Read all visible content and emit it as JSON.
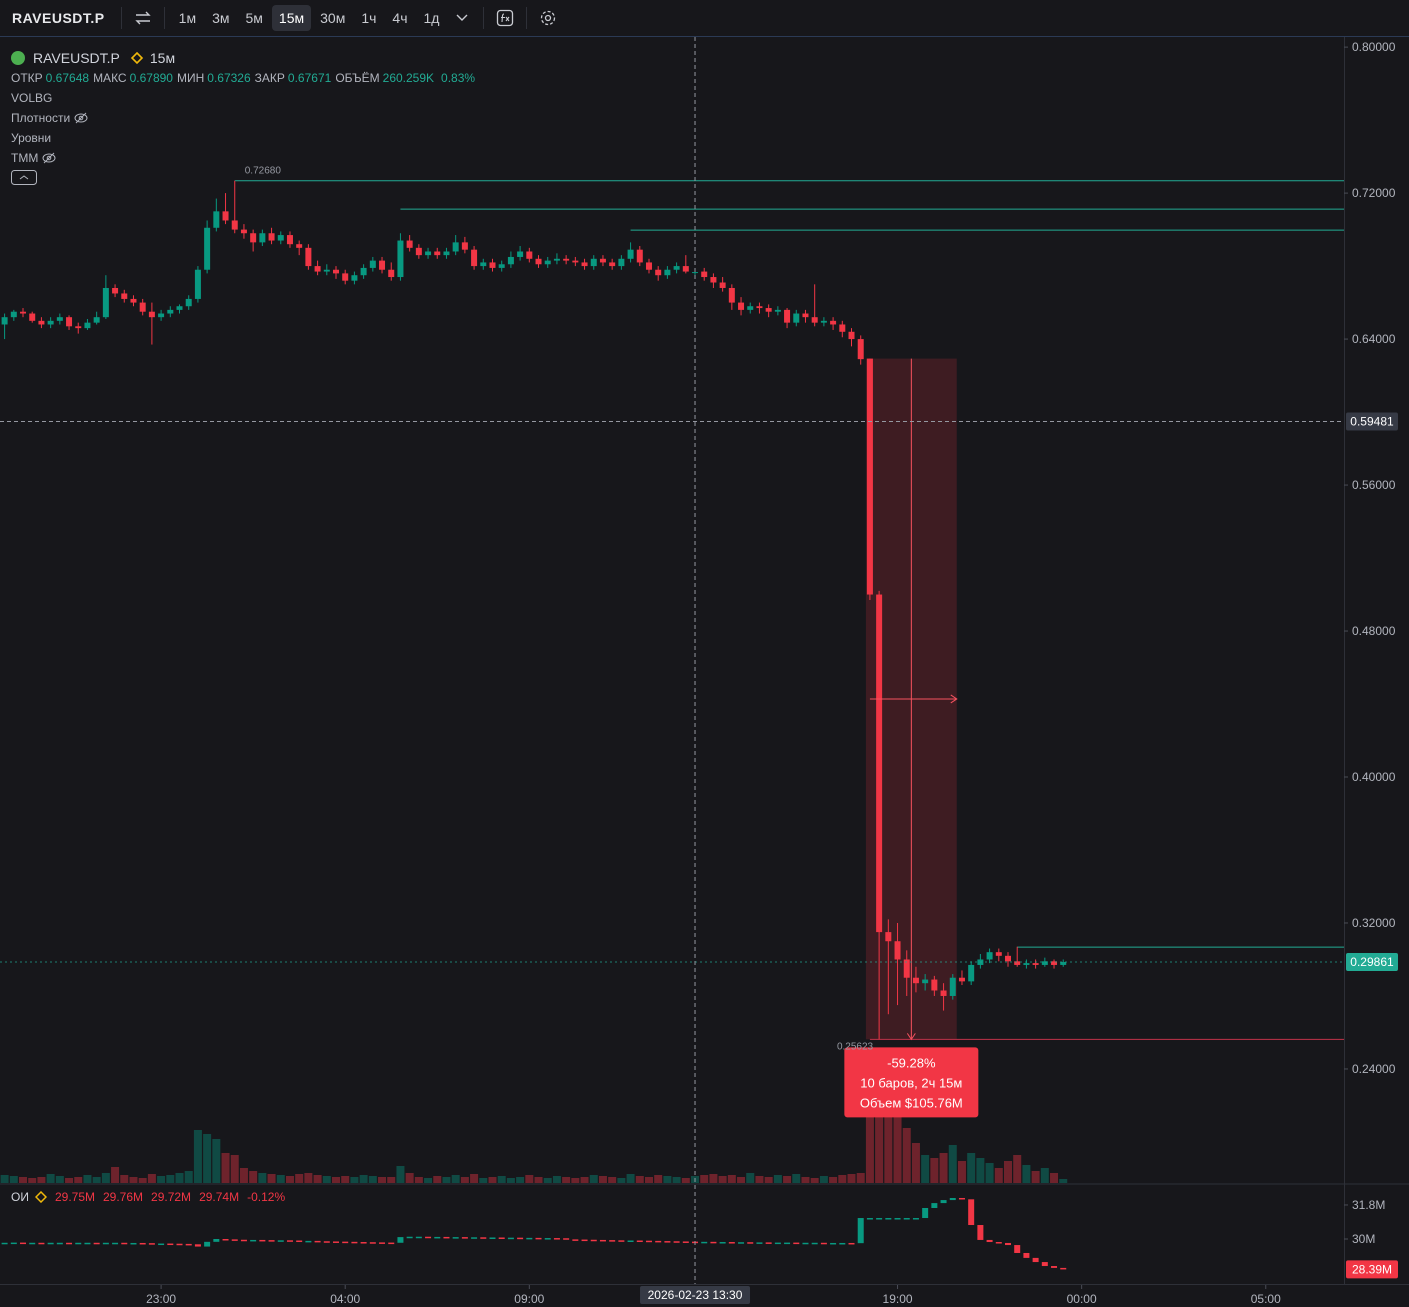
{
  "toolbar": {
    "symbol": "RAVEUSDT.P",
    "intervals": [
      "1м",
      "3м",
      "5м",
      "15м",
      "30м",
      "1ч",
      "4ч",
      "1д"
    ],
    "active_interval": 3
  },
  "legend": {
    "symbol": "RAVEUSDT.P",
    "interval": "15м",
    "fields": [
      {
        "label": "ОТКР",
        "value": "0.67648"
      },
      {
        "label": "МАКС",
        "value": "0.67890"
      },
      {
        "label": "МИН",
        "value": "0.67326"
      },
      {
        "label": "ЗАКР",
        "value": "0.67671"
      },
      {
        "label": "ОБЪЁМ",
        "value": "260.259K"
      }
    ],
    "change": "0.83%",
    "indicators": [
      "VOLBG",
      "Плотности",
      "Уровни",
      "ТММ"
    ]
  },
  "chart_data": {
    "type": "candlestick",
    "candles": [
      [
        0.648,
        0.654,
        0.64,
        0.652
      ],
      [
        0.652,
        0.656,
        0.65,
        0.655
      ],
      [
        0.655,
        0.657,
        0.652,
        0.654
      ],
      [
        0.654,
        0.655,
        0.649,
        0.65
      ],
      [
        0.65,
        0.652,
        0.646,
        0.648
      ],
      [
        0.648,
        0.652,
        0.646,
        0.65
      ],
      [
        0.65,
        0.654,
        0.648,
        0.652
      ],
      [
        0.652,
        0.653,
        0.645,
        0.647
      ],
      [
        0.647,
        0.649,
        0.643,
        0.646
      ],
      [
        0.646,
        0.651,
        0.645,
        0.649
      ],
      [
        0.649,
        0.655,
        0.648,
        0.652
      ],
      [
        0.652,
        0.675,
        0.651,
        0.668
      ],
      [
        0.668,
        0.67,
        0.663,
        0.665
      ],
      [
        0.665,
        0.667,
        0.66,
        0.662
      ],
      [
        0.662,
        0.664,
        0.658,
        0.66
      ],
      [
        0.66,
        0.662,
        0.653,
        0.655
      ],
      [
        0.655,
        0.66,
        0.637,
        0.652
      ],
      [
        0.652,
        0.656,
        0.65,
        0.654
      ],
      [
        0.654,
        0.658,
        0.652,
        0.656
      ],
      [
        0.656,
        0.659,
        0.654,
        0.658
      ],
      [
        0.658,
        0.664,
        0.656,
        0.662
      ],
      [
        0.662,
        0.68,
        0.66,
        0.678
      ],
      [
        0.678,
        0.705,
        0.676,
        0.701
      ],
      [
        0.701,
        0.717,
        0.699,
        0.71
      ],
      [
        0.71,
        0.72,
        0.703,
        0.705
      ],
      [
        0.705,
        0.7268,
        0.698,
        0.7
      ],
      [
        0.7,
        0.703,
        0.695,
        0.698
      ],
      [
        0.698,
        0.7,
        0.688,
        0.693
      ],
      [
        0.693,
        0.7,
        0.691,
        0.698
      ],
      [
        0.698,
        0.701,
        0.692,
        0.694
      ],
      [
        0.694,
        0.699,
        0.692,
        0.697
      ],
      [
        0.697,
        0.699,
        0.69,
        0.692
      ],
      [
        0.692,
        0.694,
        0.686,
        0.69
      ],
      [
        0.69,
        0.692,
        0.678,
        0.68
      ],
      [
        0.68,
        0.683,
        0.675,
        0.677
      ],
      [
        0.677,
        0.681,
        0.675,
        0.678
      ],
      [
        0.678,
        0.68,
        0.673,
        0.676
      ],
      [
        0.676,
        0.678,
        0.67,
        0.672
      ],
      [
        0.672,
        0.677,
        0.67,
        0.675
      ],
      [
        0.675,
        0.681,
        0.673,
        0.679
      ],
      [
        0.679,
        0.685,
        0.677,
        0.683
      ],
      [
        0.683,
        0.685,
        0.676,
        0.678
      ],
      [
        0.678,
        0.682,
        0.672,
        0.674
      ],
      [
        0.674,
        0.698,
        0.672,
        0.694
      ],
      [
        0.694,
        0.697,
        0.688,
        0.69
      ],
      [
        0.69,
        0.692,
        0.684,
        0.686
      ],
      [
        0.686,
        0.69,
        0.684,
        0.688
      ],
      [
        0.688,
        0.69,
        0.684,
        0.686
      ],
      [
        0.686,
        0.69,
        0.684,
        0.688
      ],
      [
        0.688,
        0.697,
        0.686,
        0.693
      ],
      [
        0.693,
        0.696,
        0.687,
        0.689
      ],
      [
        0.689,
        0.691,
        0.678,
        0.68
      ],
      [
        0.68,
        0.684,
        0.678,
        0.682
      ],
      [
        0.682,
        0.684,
        0.677,
        0.679
      ],
      [
        0.679,
        0.683,
        0.677,
        0.681
      ],
      [
        0.681,
        0.688,
        0.679,
        0.685
      ],
      [
        0.685,
        0.691,
        0.683,
        0.688
      ],
      [
        0.688,
        0.69,
        0.682,
        0.684
      ],
      [
        0.684,
        0.686,
        0.679,
        0.681
      ],
      [
        0.681,
        0.685,
        0.679,
        0.683
      ],
      [
        0.683,
        0.687,
        0.681,
        0.684
      ],
      [
        0.684,
        0.686,
        0.681,
        0.683
      ],
      [
        0.683,
        0.685,
        0.68,
        0.682
      ],
      [
        0.682,
        0.684,
        0.678,
        0.68
      ],
      [
        0.68,
        0.686,
        0.678,
        0.684
      ],
      [
        0.684,
        0.686,
        0.68,
        0.682
      ],
      [
        0.682,
        0.684,
        0.678,
        0.68
      ],
      [
        0.68,
        0.686,
        0.678,
        0.684
      ],
      [
        0.684,
        0.693,
        0.682,
        0.689
      ],
      [
        0.689,
        0.691,
        0.68,
        0.682
      ],
      [
        0.682,
        0.684,
        0.676,
        0.678
      ],
      [
        0.678,
        0.68,
        0.672,
        0.675
      ],
      [
        0.675,
        0.68,
        0.673,
        0.678
      ],
      [
        0.678,
        0.682,
        0.676,
        0.68
      ],
      [
        0.68,
        0.686,
        0.676,
        0.677
      ],
      [
        0.67648,
        0.6789,
        0.67326,
        0.67671
      ],
      [
        0.677,
        0.679,
        0.672,
        0.674
      ],
      [
        0.674,
        0.676,
        0.668,
        0.671
      ],
      [
        0.671,
        0.674,
        0.666,
        0.668
      ],
      [
        0.668,
        0.67,
        0.656,
        0.66
      ],
      [
        0.66,
        0.663,
        0.653,
        0.656
      ],
      [
        0.656,
        0.66,
        0.654,
        0.658
      ],
      [
        0.658,
        0.66,
        0.654,
        0.657
      ],
      [
        0.657,
        0.659,
        0.652,
        0.655
      ],
      [
        0.655,
        0.658,
        0.653,
        0.656
      ],
      [
        0.656,
        0.657,
        0.646,
        0.649
      ],
      [
        0.649,
        0.656,
        0.647,
        0.654
      ],
      [
        0.654,
        0.656,
        0.649,
        0.652
      ],
      [
        0.652,
        0.67,
        0.647,
        0.649
      ],
      [
        0.649,
        0.652,
        0.647,
        0.65
      ],
      [
        0.65,
        0.652,
        0.645,
        0.648
      ],
      [
        0.648,
        0.65,
        0.641,
        0.644
      ],
      [
        0.644,
        0.646,
        0.636,
        0.64
      ],
      [
        0.64,
        0.642,
        0.626,
        0.629
      ],
      [
        0.6293,
        0.6293,
        0.497,
        0.5
      ],
      [
        0.5,
        0.502,
        0.25623,
        0.315
      ],
      [
        0.315,
        0.322,
        0.27,
        0.31
      ],
      [
        0.31,
        0.32,
        0.275,
        0.3
      ],
      [
        0.3,
        0.305,
        0.28,
        0.29
      ],
      [
        0.29,
        0.296,
        0.282,
        0.287
      ],
      [
        0.287,
        0.292,
        0.283,
        0.289
      ],
      [
        0.289,
        0.291,
        0.28,
        0.283
      ],
      [
        0.283,
        0.287,
        0.272,
        0.28
      ],
      [
        0.28,
        0.292,
        0.278,
        0.29
      ],
      [
        0.29,
        0.294,
        0.286,
        0.288
      ],
      [
        0.288,
        0.299,
        0.286,
        0.297
      ],
      [
        0.297,
        0.303,
        0.295,
        0.3
      ],
      [
        0.3,
        0.306,
        0.298,
        0.304
      ],
      [
        0.304,
        0.306,
        0.299,
        0.302
      ],
      [
        0.302,
        0.304,
        0.296,
        0.299
      ],
      [
        0.299,
        0.307,
        0.296,
        0.297
      ],
      [
        0.297,
        0.3,
        0.295,
        0.298
      ],
      [
        0.298,
        0.3,
        0.295,
        0.297
      ],
      [
        0.297,
        0.301,
        0.296,
        0.299
      ],
      [
        0.299,
        0.3,
        0.295,
        0.297
      ],
      [
        0.297,
        0.3,
        0.296,
        0.29861
      ]
    ],
    "up_color": "#089981",
    "down_color": "#f23645",
    "volume": [
      8,
      7,
      6,
      5,
      6,
      9,
      7,
      5,
      6,
      8,
      6,
      10,
      16,
      8,
      6,
      5,
      9,
      7,
      8,
      10,
      12,
      53,
      49,
      44,
      30,
      28,
      15,
      12,
      10,
      9,
      8,
      7,
      9,
      10,
      8,
      7,
      6,
      7,
      6,
      8,
      7,
      6,
      6,
      17,
      10,
      6,
      5,
      7,
      6,
      8,
      6,
      9,
      5,
      6,
      7,
      5,
      6,
      8,
      6,
      5,
      7,
      6,
      5,
      6,
      8,
      7,
      6,
      5,
      9,
      7,
      6,
      8,
      7,
      6,
      5,
      7,
      8,
      9,
      7,
      8,
      6,
      10,
      7,
      6,
      8,
      7,
      9,
      6,
      5,
      7,
      6,
      8,
      9,
      10,
      120,
      130,
      110,
      80,
      55,
      40,
      28,
      25,
      30,
      38,
      22,
      30,
      25,
      20,
      15,
      22,
      28,
      18,
      12,
      15,
      10,
      4
    ],
    "vlim": [
      0,
      140
    ],
    "xlim": [
      -0.5,
      145.5
    ],
    "xticks": [
      {
        "value": 17,
        "label": "23:00"
      },
      {
        "value": 37,
        "label": "04:00"
      },
      {
        "value": 57,
        "label": "09:00"
      },
      {
        "value": 97,
        "label": "19:00"
      },
      {
        "value": 117,
        "label": "00:00"
      },
      {
        "value": 137,
        "label": "05:00"
      }
    ],
    "ylim": [
      0.1775,
      0.805
    ],
    "yticks": [
      {
        "value": 0.8,
        "label": "0.80000"
      },
      {
        "value": 0.72,
        "label": "0.72000"
      },
      {
        "value": 0.64,
        "label": "0.64000"
      },
      {
        "value": 0.56,
        "label": "0.56000"
      },
      {
        "value": 0.48,
        "label": "0.48000"
      },
      {
        "value": 0.4,
        "label": "0.40000"
      },
      {
        "value": 0.32,
        "label": "0.32000"
      },
      {
        "value": 0.24,
        "label": "0.24000"
      }
    ],
    "levels": [
      {
        "price": 0.7268,
        "from": 25,
        "color": "#22ab94"
      },
      {
        "price": 0.7112,
        "from": 43,
        "color": "#22ab94"
      },
      {
        "price": 0.6997,
        "from": 68,
        "color": "#22ab94"
      },
      {
        "price": 0.3068,
        "from": 110,
        "color": "#22ab94"
      },
      {
        "price": 0.25623,
        "from": 94,
        "color": "#c2334a"
      }
    ],
    "high_label": {
      "value": 0.7268,
      "label": "0.72680",
      "at": 25
    },
    "low_label": {
      "value": 0.25623,
      "label": "0.25623",
      "at": 95
    },
    "measure": {
      "from": 94,
      "to": 103,
      "start": 0.6293,
      "end": 0.25623,
      "lines": [
        "-59.28%",
        "10 баров, 2ч 15м",
        "Объем $105.76M"
      ]
    },
    "crosshair": {
      "x": 75,
      "x_label": "2026-02-23 13:30",
      "y": 0.59481
    },
    "last_price": 0.29861,
    "oi": {
      "title": "ОИ",
      "values": [
        "29.75M",
        "29.76M",
        "29.72M",
        "29.74M"
      ],
      "change": "-0.12%",
      "series": [
        29.8,
        29.81,
        29.8,
        29.8,
        29.79,
        29.8,
        29.8,
        29.79,
        29.8,
        29.8,
        29.79,
        29.8,
        29.8,
        29.79,
        29.79,
        29.78,
        29.76,
        29.76,
        29.75,
        29.74,
        29.72,
        29.6,
        29.85,
        30.0,
        29.98,
        29.96,
        29.95,
        29.95,
        29.94,
        29.93,
        29.93,
        29.92,
        29.9,
        29.9,
        29.88,
        29.87,
        29.86,
        29.85,
        29.84,
        29.83,
        29.82,
        29.81,
        29.8,
        30.1,
        30.12,
        30.12,
        30.11,
        30.11,
        30.1,
        30.1,
        30.09,
        30.09,
        30.08,
        30.08,
        30.07,
        30.07,
        30.06,
        30.06,
        30.05,
        30.05,
        30.04,
        29.98,
        29.97,
        29.96,
        29.95,
        29.94,
        29.93,
        29.92,
        29.92,
        29.91,
        29.9,
        29.89,
        29.88,
        29.87,
        29.86,
        29.85,
        29.85,
        29.84,
        29.84,
        29.83,
        29.83,
        29.82,
        29.82,
        29.81,
        29.81,
        29.81,
        29.8,
        29.8,
        29.8,
        29.79,
        29.79,
        29.79,
        29.78,
        31.11,
        31.11,
        31.11,
        31.11,
        31.11,
        31.11,
        31.11,
        31.64,
        31.9,
        32.06,
        32.17,
        32.1,
        30.74,
        29.95,
        29.84,
        29.79,
        29.68,
        29.26,
        29.0,
        28.78,
        28.57,
        28.47,
        28.39
      ],
      "ylim": [
        27.672,
        32.857
      ],
      "yticks": [
        {
          "value": 31.8,
          "label": "31.8M"
        },
        {
          "value": 30,
          "label": "30M"
        }
      ],
      "last": {
        "value": 28.39,
        "label": "28.39M"
      }
    }
  }
}
